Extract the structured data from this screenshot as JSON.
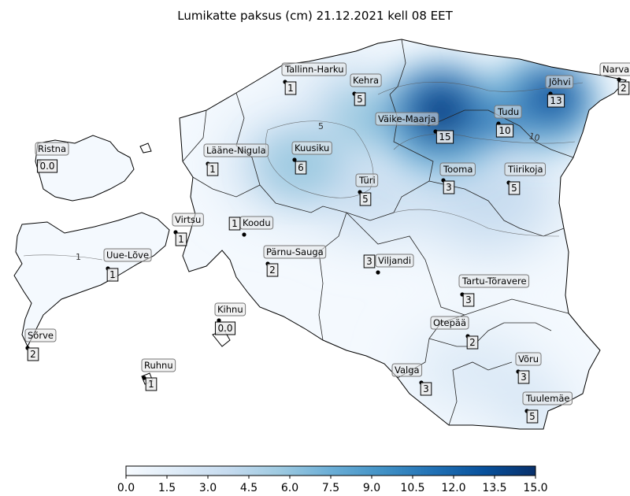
{
  "title": "Lumikatte paksus (cm) 21.12.2021 kell 08 EET",
  "colorbar": {
    "min": 0,
    "max": 15,
    "ticks": [
      "0.0",
      "1.5",
      "3.0",
      "4.5",
      "6.0",
      "7.5",
      "9.0",
      "10.5",
      "12.0",
      "13.5",
      "15.0"
    ],
    "colors": [
      "#f7fbff",
      "#deebf7",
      "#c6dbef",
      "#9ecae1",
      "#6baed6",
      "#4292c6",
      "#2171b5",
      "#08519c",
      "#08306b"
    ]
  },
  "contour_labels": [
    "1",
    "5",
    "10"
  ],
  "stations": [
    {
      "name": "Tallinn-Harku",
      "value": "1"
    },
    {
      "name": "Kehra",
      "value": "5"
    },
    {
      "name": "Narva",
      "value": "2"
    },
    {
      "name": "Jõhvi",
      "value": "13"
    },
    {
      "name": "Väike-Maarja",
      "value": "15"
    },
    {
      "name": "Tudu",
      "value": "10"
    },
    {
      "name": "Ristna",
      "value": "0.0"
    },
    {
      "name": "Lääne-Nigula",
      "value": "1"
    },
    {
      "name": "Kuusiku",
      "value": "6"
    },
    {
      "name": "Türi",
      "value": "5"
    },
    {
      "name": "Tooma",
      "value": "3"
    },
    {
      "name": "Tiirikoja",
      "value": "5"
    },
    {
      "name": "Virtsu",
      "value": "1"
    },
    {
      "name": "Koodu",
      "value": "1"
    },
    {
      "name": "Uue-Lõve",
      "value": "1"
    },
    {
      "name": "Pärnu-Sauga",
      "value": "2"
    },
    {
      "name": "Viljandi",
      "value": "3"
    },
    {
      "name": "Tartu-Tõravere",
      "value": "3"
    },
    {
      "name": "Kihnu",
      "value": "0.0"
    },
    {
      "name": "Sõrve",
      "value": "2"
    },
    {
      "name": "Otepää",
      "value": "2"
    },
    {
      "name": "Ruhnu",
      "value": "1"
    },
    {
      "name": "Valga",
      "value": "3"
    },
    {
      "name": "Võru",
      "value": "3"
    },
    {
      "name": "Tuulemäe",
      "value": "5"
    }
  ]
}
